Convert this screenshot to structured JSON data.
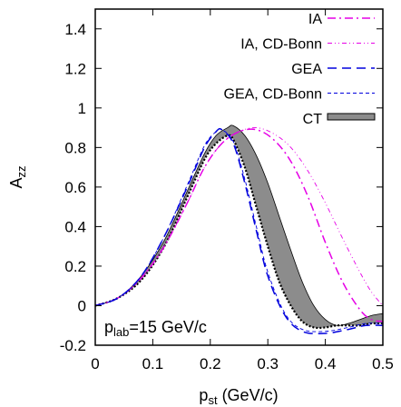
{
  "chart_data": {
    "type": "line",
    "xlabel": "p",
    "xlabel_sub": "st",
    "xlabel_unit": " (GeV/c)",
    "ylabel": "A",
    "ylabel_sub": "zz",
    "xlim": [
      0,
      0.5
    ],
    "ylim": [
      -0.2,
      1.5
    ],
    "xticks": [
      0,
      0.1,
      0.2,
      0.3,
      0.4,
      0.5
    ],
    "xtick_labels": [
      "0",
      "0.1",
      "0.2",
      "0.3",
      "0.4",
      "0.5"
    ],
    "yticks": [
      -0.2,
      0,
      0.2,
      0.4,
      0.6,
      0.8,
      1.0,
      1.2,
      1.4
    ],
    "ytick_labels": [
      "-0.2",
      "0",
      "0.2",
      "0.4",
      "0.6",
      "0.8",
      "1",
      "1.2",
      "1.4"
    ],
    "grid": false,
    "legend_position": "top-right",
    "annotation": {
      "prefix": "p",
      "sub": "lab",
      "suffix": "=15 GeV/c"
    },
    "colors": {
      "magenta": "#e600e6",
      "blue": "#0000dd",
      "band_fill": "#8c8c8c",
      "black": "#000000"
    },
    "series": [
      {
        "name": "IA",
        "style": "magenta-dashdot",
        "x": [
          0,
          0.04,
          0.08,
          0.12,
          0.16,
          0.19,
          0.22,
          0.25,
          0.28,
          0.31,
          0.34,
          0.37,
          0.4,
          0.43,
          0.46,
          0.48,
          0.5
        ],
        "y": [
          0.0,
          0.04,
          0.14,
          0.3,
          0.52,
          0.7,
          0.82,
          0.88,
          0.89,
          0.84,
          0.73,
          0.55,
          0.32,
          0.12,
          -0.02,
          -0.07,
          -0.08
        ]
      },
      {
        "name": "IA, CD-Bonn",
        "style": "magenta-dashdotdot",
        "x": [
          0,
          0.04,
          0.08,
          0.12,
          0.16,
          0.19,
          0.22,
          0.25,
          0.28,
          0.31,
          0.34,
          0.37,
          0.4,
          0.43,
          0.46,
          0.48,
          0.5
        ],
        "y": [
          0.0,
          0.04,
          0.14,
          0.3,
          0.52,
          0.7,
          0.82,
          0.88,
          0.9,
          0.87,
          0.8,
          0.68,
          0.52,
          0.34,
          0.17,
          0.07,
          0.0
        ]
      },
      {
        "name": "GEA",
        "style": "blue-dashed",
        "x": [
          0,
          0.04,
          0.08,
          0.12,
          0.16,
          0.19,
          0.21,
          0.22,
          0.24,
          0.26,
          0.28,
          0.3,
          0.33,
          0.36,
          0.4,
          0.44,
          0.47,
          0.5
        ],
        "y": [
          0.0,
          0.04,
          0.15,
          0.35,
          0.6,
          0.8,
          0.88,
          0.89,
          0.82,
          0.62,
          0.38,
          0.15,
          -0.05,
          -0.13,
          -0.14,
          -0.12,
          -0.1,
          -0.1
        ]
      },
      {
        "name": "GEA, CD-Bonn",
        "style": "blue-finedashed",
        "x": [
          0,
          0.04,
          0.08,
          0.12,
          0.16,
          0.19,
          0.21,
          0.22,
          0.24,
          0.26,
          0.28,
          0.3,
          0.33,
          0.36,
          0.4,
          0.44,
          0.47,
          0.5
        ],
        "y": [
          0.0,
          0.04,
          0.15,
          0.35,
          0.61,
          0.81,
          0.88,
          0.89,
          0.83,
          0.64,
          0.4,
          0.17,
          -0.04,
          -0.12,
          -0.13,
          -0.11,
          -0.09,
          -0.09
        ]
      },
      {
        "name": "CT",
        "style": "gray-band",
        "x": [
          0,
          0.04,
          0.08,
          0.12,
          0.16,
          0.19,
          0.21,
          0.23,
          0.24,
          0.26,
          0.28,
          0.3,
          0.32,
          0.34,
          0.36,
          0.38,
          0.4,
          0.42,
          0.44,
          0.46,
          0.48,
          0.5
        ],
        "y_low": [
          0.0,
          0.04,
          0.13,
          0.3,
          0.55,
          0.74,
          0.82,
          0.86,
          0.84,
          0.7,
          0.5,
          0.3,
          0.12,
          0.0,
          -0.08,
          -0.11,
          -0.11,
          -0.1,
          -0.1,
          -0.1,
          -0.09,
          -0.09
        ],
        "y_high": [
          0.0,
          0.04,
          0.15,
          0.33,
          0.58,
          0.77,
          0.86,
          0.9,
          0.91,
          0.86,
          0.76,
          0.62,
          0.45,
          0.28,
          0.12,
          0.0,
          -0.07,
          -0.1,
          -0.09,
          -0.07,
          -0.05,
          -0.04
        ]
      }
    ]
  }
}
